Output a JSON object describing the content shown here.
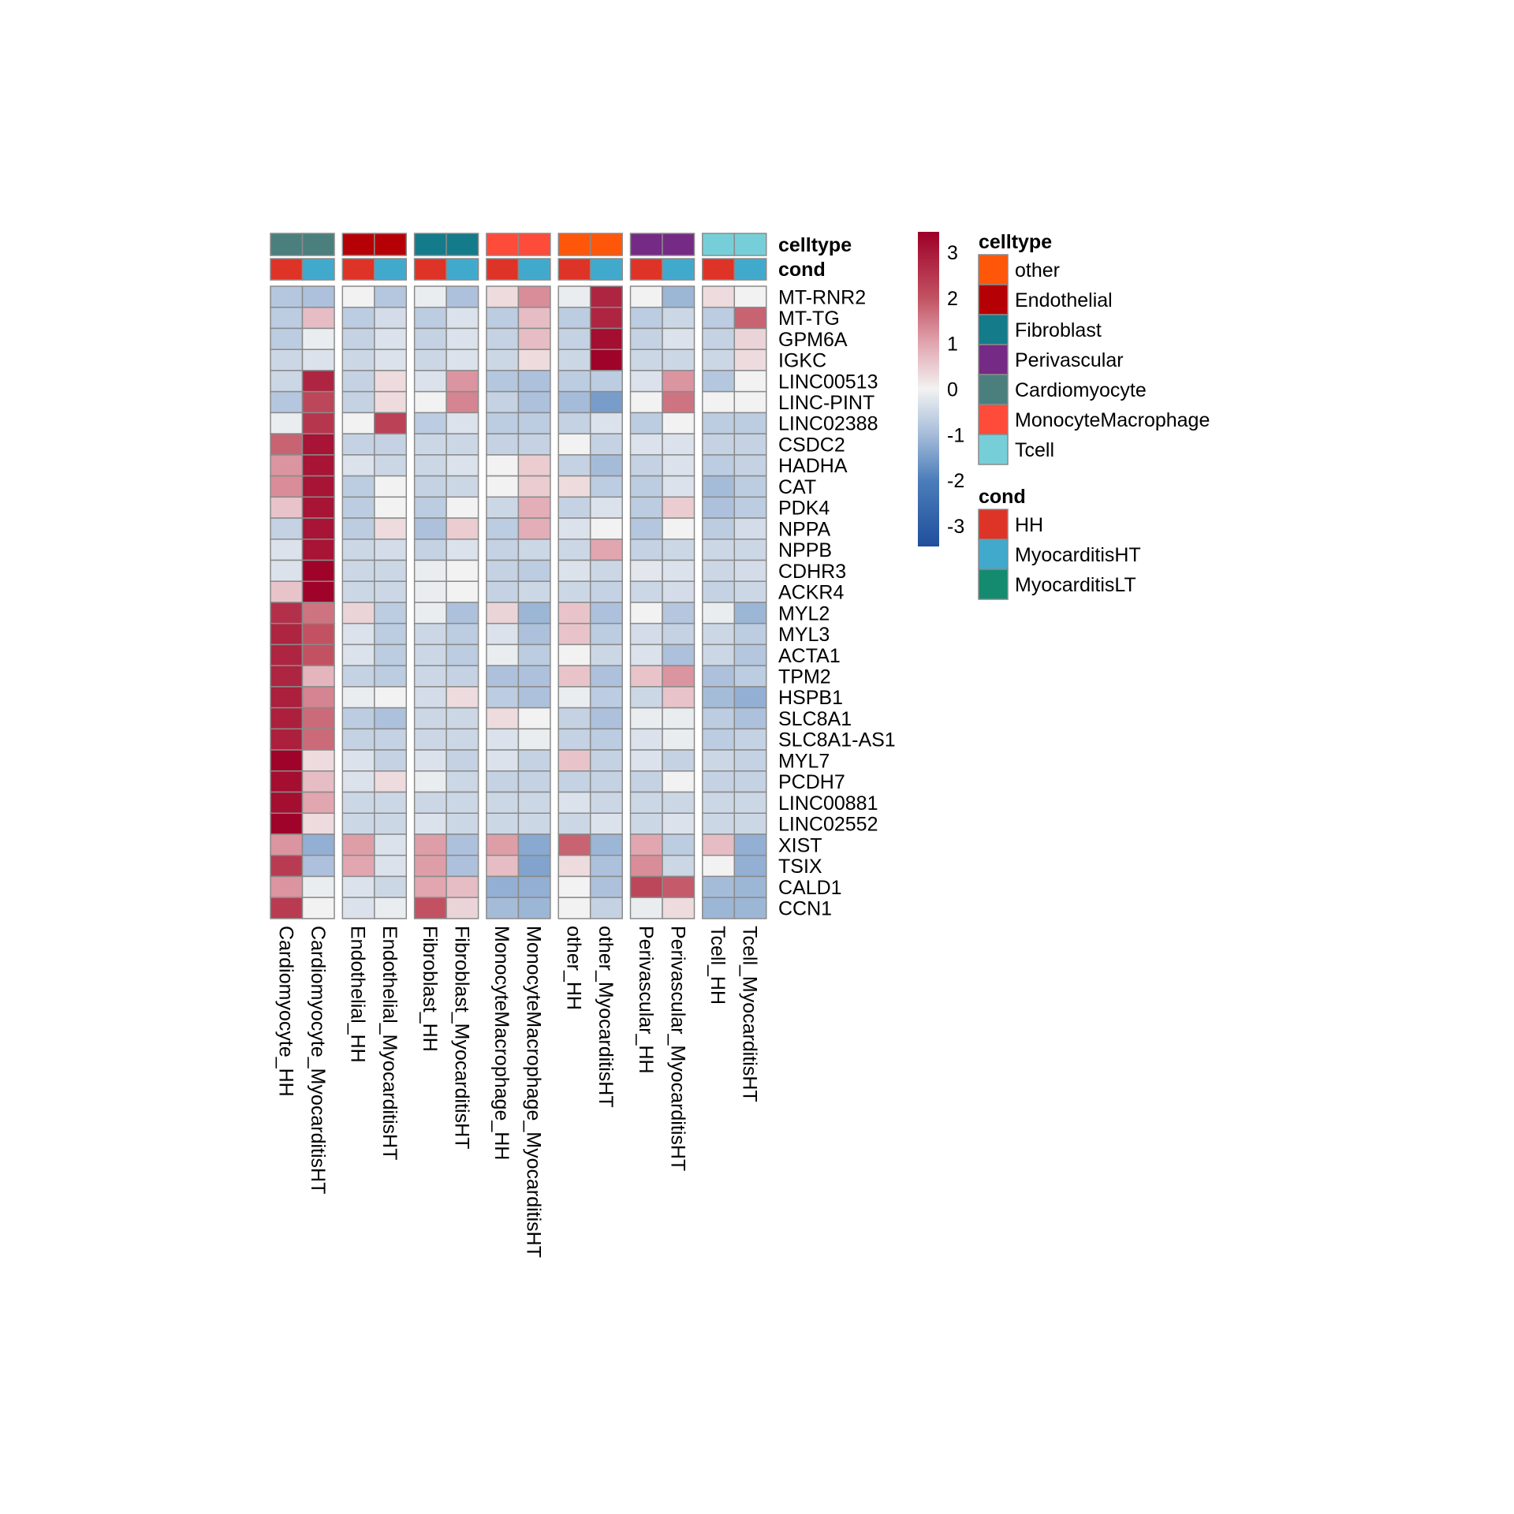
{
  "chart_data": {
    "type": "heatmap",
    "rows": [
      "MT-RNR2",
      "MT-TG",
      "GPM6A",
      "IGKC",
      "LINC00513",
      "LINC-PINT",
      "LINC02388",
      "CSDC2",
      "HADHA",
      "CAT",
      "PDK4",
      "NPPA",
      "NPPB",
      "CDHR3",
      "ACKR4",
      "MYL2",
      "MYL3",
      "ACTA1",
      "TPM2",
      "HSPB1",
      "SLC8A1",
      "SLC8A1-AS1",
      "MYL7",
      "PCDH7",
      "LINC00881",
      "LINC02552",
      "XIST",
      "TSIX",
      "CALD1",
      "CCN1"
    ],
    "columns": [
      "Cardiomyocyte_HH",
      "Cardiomyocyte_MyocarditisHT",
      "Endothelial_HH",
      "Endothelial_MyocarditisHT",
      "Fibroblast_HH",
      "Fibroblast_MyocarditisHT",
      "MonocyteMacrophage_HH",
      "MonocyteMacrophage_MyocarditisHT",
      "other_HH",
      "other_MyocarditisHT",
      "Perivascular_HH",
      "Perivascular_MyocarditisHT",
      "Tcell_HH",
      "Tcell_MyocarditisHT"
    ],
    "column_celltype": [
      "Cardiomyocyte",
      "Cardiomyocyte",
      "Endothelial",
      "Endothelial",
      "Fibroblast",
      "Fibroblast",
      "MonocyteMacrophage",
      "MonocyteMacrophage",
      "other",
      "other",
      "Perivascular",
      "Perivascular",
      "Tcell",
      "Tcell"
    ],
    "column_cond": [
      "HH",
      "MyocarditisHT",
      "HH",
      "MyocarditisHT",
      "HH",
      "MyocarditisHT",
      "HH",
      "MyocarditisHT",
      "HH",
      "MyocarditisHT",
      "HH",
      "MyocarditisHT",
      "HH",
      "MyocarditisHT"
    ],
    "annotation_row_labels": [
      "celltype",
      "cond"
    ],
    "values": [
      [
        -0.8,
        -0.9,
        0,
        -0.8,
        -0.1,
        -0.9,
        0.3,
        1.3,
        -0.1,
        2.8,
        0,
        -1.1,
        0.3,
        0
      ],
      [
        -0.7,
        0.7,
        -0.7,
        -0.4,
        -0.7,
        -0.3,
        -0.7,
        0.7,
        -0.7,
        2.8,
        -0.7,
        -0.5,
        -0.7,
        1.8
      ],
      [
        -0.7,
        -0.1,
        -0.6,
        -0.3,
        -0.6,
        -0.3,
        -0.6,
        0.7,
        -0.6,
        3.2,
        -0.6,
        -0.3,
        -0.6,
        0.4
      ],
      [
        -0.5,
        -0.3,
        -0.5,
        -0.3,
        -0.5,
        -0.3,
        -0.5,
        0.3,
        -0.5,
        3.4,
        -0.5,
        -0.5,
        -0.5,
        0.3
      ],
      [
        -0.5,
        2.8,
        -0.6,
        0.3,
        -0.3,
        1.2,
        -0.8,
        -0.9,
        -0.7,
        -0.7,
        -0.3,
        1.2,
        -0.8,
        0
      ],
      [
        -0.8,
        2.2,
        -0.6,
        0.3,
        0,
        1.4,
        -0.6,
        -0.9,
        -1.0,
        -1.5,
        0,
        1.6,
        0,
        0
      ],
      [
        -0.1,
        2.5,
        0,
        2.3,
        -0.7,
        -0.3,
        -0.7,
        -0.7,
        -0.6,
        -0.3,
        -0.7,
        0,
        -0.7,
        -0.7
      ],
      [
        1.8,
        3.1,
        -0.6,
        -0.6,
        -0.5,
        -0.5,
        -0.6,
        -0.6,
        0,
        -0.6,
        -0.3,
        -0.3,
        -0.6,
        -0.6
      ],
      [
        1.2,
        3.1,
        -0.3,
        -0.5,
        -0.5,
        -0.3,
        0,
        0.5,
        -0.6,
        -1.0,
        -0.6,
        -0.3,
        -0.7,
        -0.6
      ],
      [
        1.3,
        3.1,
        -0.7,
        0,
        -0.6,
        -0.5,
        0,
        0.5,
        0.3,
        -0.7,
        -0.7,
        -0.3,
        -1.0,
        -0.7
      ],
      [
        0.6,
        3.1,
        -0.7,
        0,
        -0.7,
        0,
        -0.5,
        0.9,
        -0.6,
        -0.3,
        -0.7,
        0.5,
        -0.9,
        -0.7
      ],
      [
        -0.6,
        3.1,
        -0.7,
        0.3,
        -0.9,
        0.5,
        -0.7,
        0.9,
        -0.3,
        0,
        -0.8,
        0,
        -0.7,
        -0.4
      ],
      [
        -0.3,
        3.1,
        -0.5,
        -0.4,
        -0.6,
        -0.3,
        -0.6,
        -0.5,
        -0.5,
        1.0,
        -0.6,
        -0.5,
        -0.5,
        -0.5
      ],
      [
        -0.3,
        3.4,
        -0.5,
        -0.5,
        -0.1,
        0,
        -0.6,
        -0.7,
        -0.3,
        -0.5,
        -0.2,
        -0.3,
        -0.5,
        -0.4
      ],
      [
        0.6,
        3.4,
        -0.5,
        -0.5,
        -0.1,
        0,
        -0.6,
        -0.5,
        -0.5,
        -0.6,
        -0.5,
        -0.4,
        -0.6,
        -0.5
      ],
      [
        2.6,
        1.6,
        0.4,
        -0.7,
        -0.1,
        -0.9,
        0.4,
        -1.1,
        0.6,
        -0.9,
        0,
        -0.8,
        -0.1,
        -1.1
      ],
      [
        2.8,
        2.0,
        -0.3,
        -0.7,
        -0.5,
        -0.7,
        -0.3,
        -0.9,
        0.6,
        -0.7,
        -0.4,
        -0.6,
        -0.5,
        -0.7
      ],
      [
        2.8,
        2.0,
        -0.3,
        -0.7,
        -0.5,
        -0.7,
        -0.1,
        -0.7,
        0,
        -0.5,
        -0.3,
        -0.9,
        -0.5,
        -0.8
      ],
      [
        2.8,
        0.8,
        -0.6,
        -0.7,
        -0.5,
        -0.6,
        -0.9,
        -0.9,
        0.6,
        -0.9,
        0.6,
        1.2,
        -0.9,
        -0.7
      ],
      [
        2.9,
        1.4,
        -0.1,
        0,
        -0.4,
        0.3,
        -0.7,
        -0.9,
        -0.1,
        -0.7,
        -0.5,
        0.6,
        -1.0,
        -1.2
      ],
      [
        2.9,
        1.7,
        -0.7,
        -0.9,
        -0.5,
        -0.5,
        0.3,
        0,
        -0.6,
        -0.9,
        -0.1,
        -0.1,
        -0.7,
        -0.9
      ],
      [
        2.9,
        1.7,
        -0.6,
        -0.6,
        -0.5,
        -0.5,
        -0.3,
        -0.1,
        -0.6,
        -0.7,
        -0.3,
        -0.1,
        -0.7,
        -0.6
      ],
      [
        3.4,
        0.3,
        -0.3,
        -0.6,
        -0.3,
        -0.6,
        -0.3,
        -0.6,
        0.6,
        -0.6,
        -0.3,
        -0.6,
        -0.5,
        -0.6
      ],
      [
        3.2,
        0.7,
        -0.3,
        0.3,
        -0.1,
        -0.5,
        -0.6,
        -0.6,
        -0.6,
        -0.6,
        -0.6,
        0,
        -0.6,
        -0.6
      ],
      [
        3.2,
        1.0,
        -0.5,
        -0.5,
        -0.5,
        -0.5,
        -0.5,
        -0.5,
        -0.3,
        -0.5,
        -0.5,
        -0.5,
        -0.5,
        -0.5
      ],
      [
        3.4,
        0.3,
        -0.5,
        -0.5,
        -0.3,
        -0.5,
        -0.5,
        -0.5,
        -0.5,
        -0.3,
        -0.5,
        -0.3,
        -0.5,
        -0.5
      ],
      [
        1.2,
        -1.2,
        1.1,
        -0.3,
        1.1,
        -0.9,
        1.1,
        -1.3,
        1.8,
        -1.1,
        1.0,
        -0.7,
        0.7,
        -1.2
      ],
      [
        2.4,
        -0.9,
        1.0,
        -0.3,
        1.1,
        -0.9,
        0.7,
        -1.4,
        0.3,
        -0.9,
        1.3,
        -0.5,
        0,
        -1.2
      ],
      [
        1.2,
        -0.1,
        -0.3,
        -0.5,
        1.0,
        0.7,
        -1.2,
        -1.2,
        0,
        -0.9,
        2.2,
        1.9,
        -1.0,
        -1.1
      ],
      [
        2.4,
        0,
        -0.3,
        -0.1,
        2.0,
        0.4,
        -1.0,
        -1.1,
        0,
        -0.6,
        -0.1,
        0.3,
        -1.1,
        -1.1
      ]
    ],
    "color_scale": {
      "range": [
        -3.45,
        3.45
      ],
      "ticks": [
        "3",
        "2",
        "1",
        "0",
        "-1",
        "-2",
        "-3"
      ],
      "tick_values": [
        3,
        2,
        1,
        0,
        -1,
        -2,
        -3
      ],
      "stops": [
        [
          -3.45,
          "#1F4F9C"
        ],
        [
          -2,
          "#4C7DBA"
        ],
        [
          -1,
          "#A5BCD9"
        ],
        [
          0,
          "#F2F2F2"
        ],
        [
          1,
          "#E1A6B0"
        ],
        [
          2,
          "#C25262"
        ],
        [
          3.45,
          "#9E0027"
        ]
      ]
    },
    "legends": [
      {
        "title": "celltype",
        "items": [
          {
            "label": "other",
            "color": "#FF570A"
          },
          {
            "label": "Endothelial",
            "color": "#B50006"
          },
          {
            "label": "Fibroblast",
            "color": "#137B8A"
          },
          {
            "label": "Perivascular",
            "color": "#752A85"
          },
          {
            "label": "Cardiomyocyte",
            "color": "#4A7F7E"
          },
          {
            "label": "MonocyteMacrophage",
            "color": "#FF4B3A"
          },
          {
            "label": "Tcell",
            "color": "#76CFD8"
          }
        ]
      },
      {
        "title": "cond",
        "items": [
          {
            "label": "HH",
            "color": "#DE3327"
          },
          {
            "label": "MyocarditisHT",
            "color": "#41AACC"
          },
          {
            "label": "MyocarditisLT",
            "color": "#148B6E"
          }
        ]
      }
    ]
  }
}
